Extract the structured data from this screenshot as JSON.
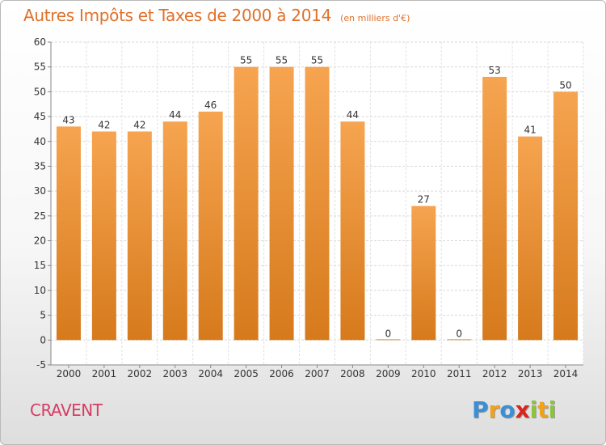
{
  "title": "Autres Impôts et Taxes de 2000 à 2014",
  "unit": "(en milliers d'€)",
  "commune": "CRAVENT",
  "logo": {
    "letters": [
      "P",
      "r",
      "o",
      "x",
      "i",
      "t",
      "i"
    ],
    "colors": [
      "#3b8fd6",
      "#f0a21b",
      "#3b8fd6",
      "#d9261c",
      "#8cc43b",
      "#f0a21b",
      "#8cc43b"
    ]
  },
  "colors": {
    "bar_light": "#f6a450",
    "bar_dark": "#d67a1c",
    "title": "#e0702a",
    "commune": "#d63c64"
  },
  "chart_data": {
    "type": "bar",
    "title": "Autres Impôts et Taxes de 2000 à 2014",
    "categories": [
      "2000",
      "2001",
      "2002",
      "2003",
      "2004",
      "2005",
      "2006",
      "2007",
      "2008",
      "2009",
      "2010",
      "2011",
      "2012",
      "2013",
      "2014"
    ],
    "values": [
      43,
      42,
      42,
      44,
      46,
      55,
      55,
      55,
      44,
      0,
      27,
      0,
      53,
      41,
      50
    ],
    "data_labels": [
      "43",
      "42",
      "42",
      "44",
      "46",
      "55",
      "55",
      "55",
      "44",
      "0",
      "27",
      "0",
      "53",
      "41",
      "50"
    ],
    "xlabel": "",
    "ylabel": "",
    "ylim": [
      -5,
      60
    ],
    "yticks": [
      -5,
      0,
      5,
      10,
      15,
      20,
      25,
      30,
      35,
      40,
      45,
      50,
      55,
      60
    ],
    "grid": true,
    "legend": "none"
  }
}
